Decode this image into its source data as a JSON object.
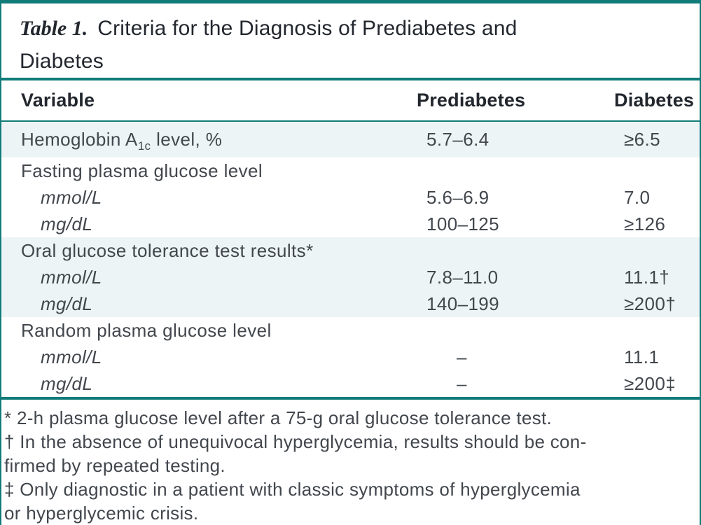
{
  "title": {
    "label": "Table 1.",
    "line1": "Criteria for the Diagnosis of Prediabetes and",
    "line2": "Diabetes"
  },
  "table": {
    "columns": {
      "variable": "Variable",
      "prediabetes": "Prediabetes",
      "diabetes": "Diabetes"
    },
    "rows": [
      {
        "variable_pre": "Hemoglobin A",
        "variable_sub": "1c",
        "variable_post": " level, %",
        "prediabetes": "5.7–6.4",
        "diabetes": "≥6.5"
      },
      {
        "variable": "Fasting plasma glucose level",
        "prediabetes": "",
        "diabetes": ""
      },
      {
        "variable": "mmol/L",
        "prediabetes": "5.6–6.9",
        "diabetes": "7.0"
      },
      {
        "variable": "mg/dL",
        "prediabetes": "100–125",
        "diabetes": "≥126"
      },
      {
        "variable": "Oral glucose tolerance test results*",
        "prediabetes": "",
        "diabetes": ""
      },
      {
        "variable": "mmol/L",
        "prediabetes": "7.8–11.0",
        "diabetes": "11.1†"
      },
      {
        "variable": "mg/dL",
        "prediabetes": "140–199",
        "diabetes": "≥200†"
      },
      {
        "variable": "Random plasma glucose level",
        "prediabetes": "",
        "diabetes": ""
      },
      {
        "variable": "mmol/L",
        "prediabetes": "–",
        "diabetes": "11.1"
      },
      {
        "variable": "mg/dL",
        "prediabetes": "–",
        "diabetes": "≥200‡"
      }
    ]
  },
  "footnotes": {
    "lines": [
      "* 2-h plasma glucose level after a 75-g oral glucose tolerance test.",
      "† In the absence of unequivocal hyperglycemia, results should be con-",
      "firmed by repeated testing.",
      "‡ Only diagnostic in a patient with classic symptoms of hyperglycemia",
      "or hyperglycemic crisis."
    ]
  },
  "colors": {
    "teal_accent": "#117c79",
    "row_shade": "#edf4f5",
    "heading_text": "#22272e",
    "body_text": "#42474d"
  }
}
